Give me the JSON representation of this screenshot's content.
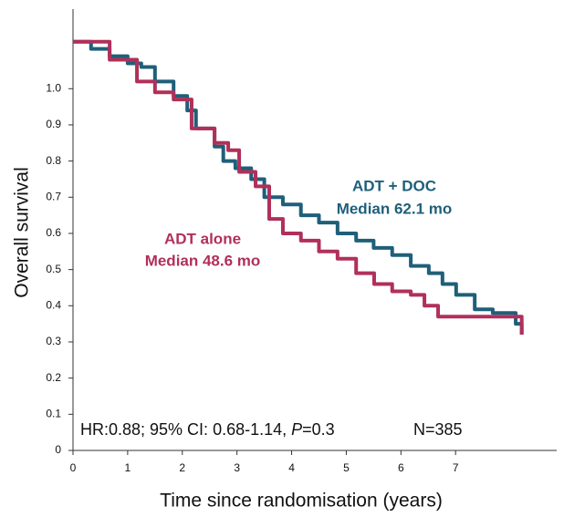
{
  "chart_data": {
    "type": "step",
    "ylabel": "Overall survival",
    "xlabel": "Time since randomisation (years)",
    "xlim": [
      0,
      8.85
    ],
    "ylim": [
      0,
      1.22
    ],
    "xticks": [
      0,
      1,
      2,
      3,
      4,
      5,
      6,
      7
    ],
    "yticks": [
      0,
      0.1,
      0.2,
      0.3,
      0.4,
      0.5,
      0.6,
      0.7,
      0.8,
      0.9,
      {
        "value": 1,
        "label": "1.0"
      }
    ],
    "series": [
      {
        "name": "ADT + DOC",
        "median_label": "Median 62.1 mo",
        "color": "#1f5f7a",
        "x": [
          0,
          0.33,
          0.67,
          1.0,
          1.25,
          1.5,
          1.84,
          2.09,
          2.25,
          2.59,
          2.75,
          2.97,
          3.26,
          3.5,
          3.84,
          4.17,
          4.5,
          4.84,
          5.18,
          5.5,
          5.84,
          6.18,
          6.51,
          6.76,
          7.01,
          7.35,
          7.68,
          8.1,
          8.21
        ],
        "values": [
          1.13,
          1.11,
          1.09,
          1.07,
          1.06,
          1.02,
          0.98,
          0.94,
          0.89,
          0.84,
          0.8,
          0.78,
          0.75,
          0.7,
          0.68,
          0.65,
          0.63,
          0.6,
          0.58,
          0.56,
          0.54,
          0.51,
          0.49,
          0.46,
          0.43,
          0.39,
          0.38,
          0.35,
          0.32
        ]
      },
      {
        "name": "ADT alone",
        "median_label": "Median 48.6 mo",
        "color": "#b0305a",
        "x": [
          0,
          0.67,
          1.17,
          1.5,
          1.84,
          2.17,
          2.59,
          2.84,
          3.04,
          3.34,
          3.59,
          3.84,
          4.17,
          4.5,
          4.84,
          5.18,
          5.51,
          5.84,
          6.18,
          6.43,
          6.68,
          7.35,
          7.85,
          8.21
        ],
        "values": [
          1.13,
          1.08,
          1.02,
          0.99,
          0.97,
          0.89,
          0.85,
          0.83,
          0.77,
          0.73,
          0.64,
          0.6,
          0.58,
          0.55,
          0.53,
          0.49,
          0.46,
          0.44,
          0.43,
          0.4,
          0.37,
          0.37,
          0.37,
          0.32
        ]
      }
    ],
    "annotation": {
      "text": "HR:0.88; 95% CI: 0.68-1.14, ",
      "italic": "P",
      "after": "=0.3",
      "n": "N=385"
    }
  }
}
